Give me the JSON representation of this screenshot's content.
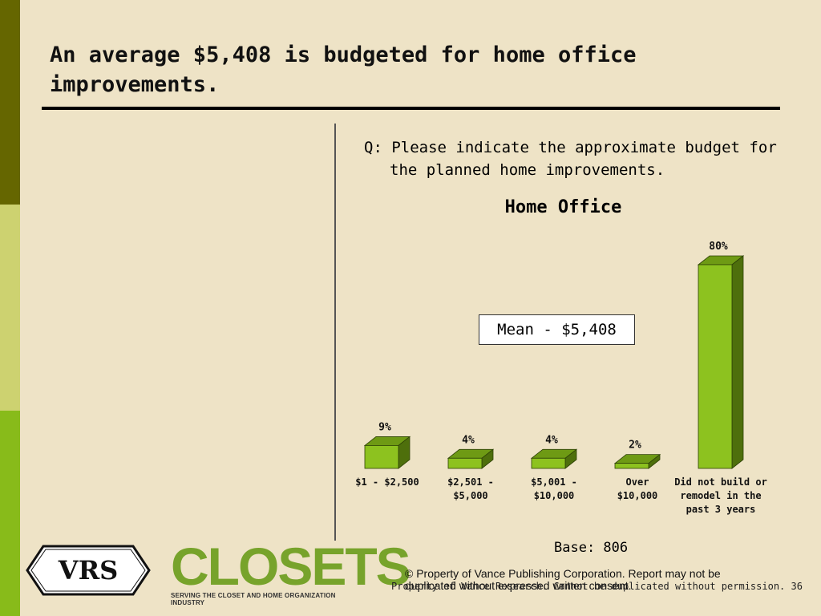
{
  "slide": {
    "title": "An average $5,408 is budgeted for home office improvements.",
    "question_line1": "Q: Please indicate the approximate budget for",
    "question_line2": "the planned home improvements.",
    "mean_label": "Mean - $5,408",
    "base_label": "Base: 806",
    "copyright": "© Property of Vance Publishing Corporation.  Report may not be duplicated without expressed written consent.",
    "footer_note": "Property of Vance Research. Cannot be duplicated without permission.",
    "page_number": "36"
  },
  "logos": {
    "vrs_text": "VRS",
    "closets_text": "CLOSETS",
    "closets_tagline": "SERVING THE CLOSET AND HOME ORGANIZATION INDUSTRY"
  },
  "colors": {
    "background": "#EEE3C6",
    "sidebar_dark": "#656600",
    "sidebar_light": "#CDD270",
    "sidebar_green": "#88BB1A",
    "bar_front": "#8DC21F",
    "bar_top": "#6E9A14",
    "bar_side": "#4E6F0C"
  },
  "chart_data": {
    "type": "bar",
    "title": "Home Office",
    "categories": [
      [
        "$1 - $2,500"
      ],
      [
        "$2,501 -",
        "$5,000"
      ],
      [
        "$5,001 -",
        "$10,000"
      ],
      [
        "Over",
        "$10,000"
      ],
      [
        "Did not build or",
        "remodel in the",
        "past 3 years"
      ]
    ],
    "values": [
      9,
      4,
      4,
      2,
      80
    ],
    "value_labels": [
      "9%",
      "4%",
      "4%",
      "2%",
      "80%"
    ],
    "ylim": [
      0,
      80
    ],
    "grid": false,
    "legend": "none"
  }
}
